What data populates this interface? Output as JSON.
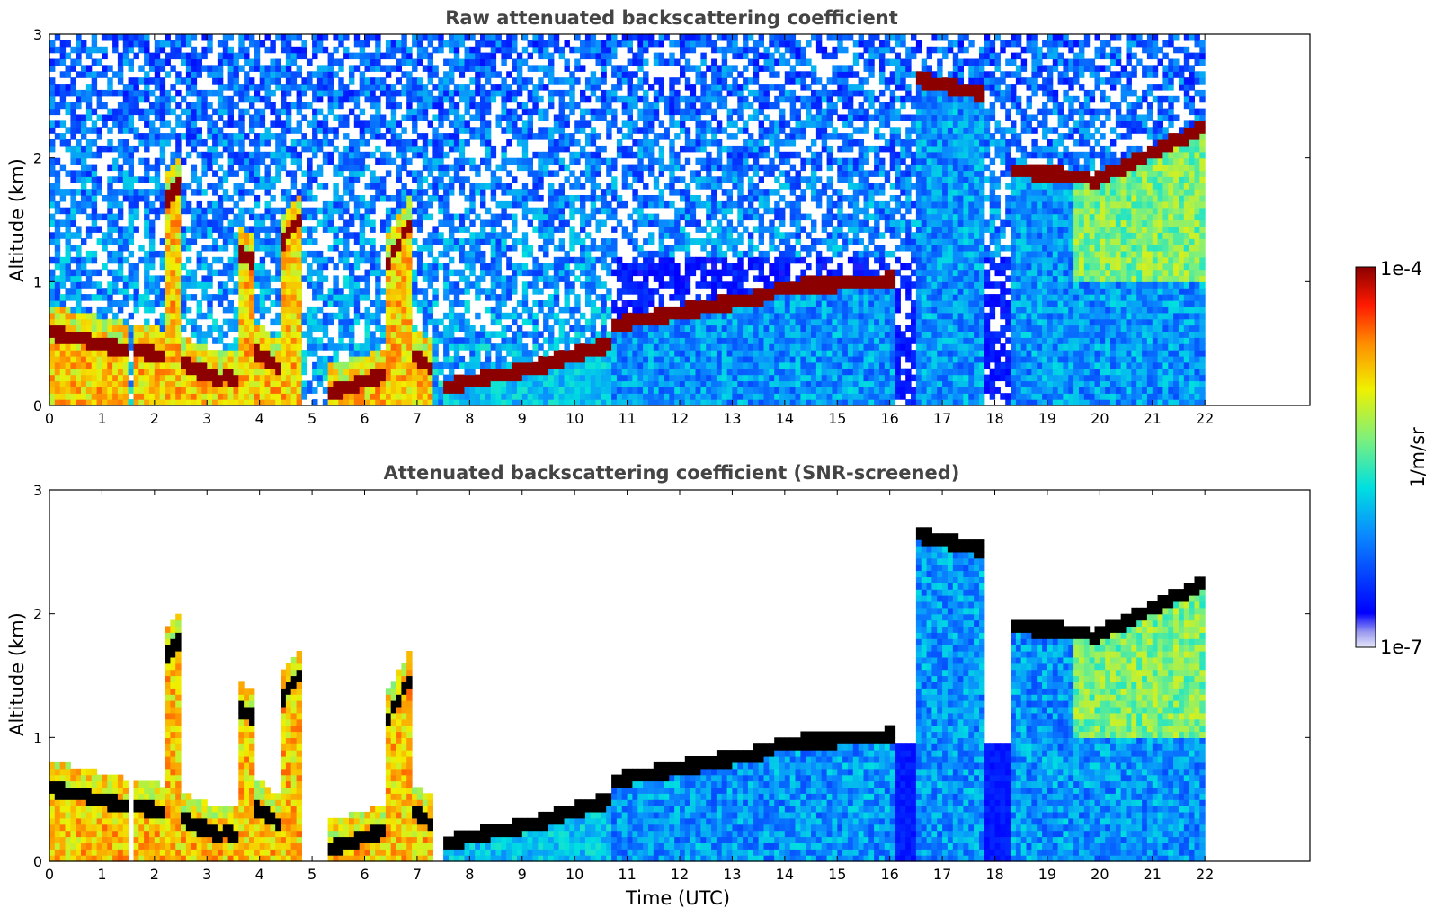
{
  "chart_data": [
    {
      "type": "heatmap",
      "title": "Raw attenuated backscattering coefficient",
      "xlabel": "",
      "ylabel": "Altitude (km)",
      "xlim": [
        0,
        24
      ],
      "ylim": [
        0,
        3
      ],
      "x_ticks": [
        "0",
        "1",
        "2",
        "3",
        "4",
        "5",
        "6",
        "7",
        "8",
        "9",
        "10",
        "11",
        "12",
        "13",
        "14",
        "15",
        "16",
        "17",
        "18",
        "19",
        "20",
        "21",
        "22"
      ],
      "y_ticks": [
        "0",
        "1",
        "2",
        "3"
      ],
      "data_time_range": [
        0,
        22
      ],
      "cloud_layers": [
        {
          "t": [
            0,
            1.5
          ],
          "alt_start": 0.6,
          "alt_end": 0.45
        },
        {
          "t": [
            1.6,
            2.2
          ],
          "alt_start": 0.45,
          "alt_end": 0.4
        },
        {
          "t": [
            2.2,
            2.5
          ],
          "alt_start": 1.65,
          "alt_end": 1.8
        },
        {
          "t": [
            2.5,
            3.3
          ],
          "alt_start": 0.35,
          "alt_end": 0.2
        },
        {
          "t": [
            3.3,
            3.6
          ],
          "alt_start": 0.25,
          "alt_end": 0.2
        },
        {
          "t": [
            3.6,
            3.9
          ],
          "alt_start": 1.25,
          "alt_end": 1.15
        },
        {
          "t": [
            3.9,
            4.4
          ],
          "alt_start": 0.45,
          "alt_end": 0.3
        },
        {
          "t": [
            4.4,
            4.75
          ],
          "alt_start": 1.3,
          "alt_end": 1.5
        },
        {
          "t": [
            5.3,
            6.4
          ],
          "alt_start": 0.1,
          "alt_end": 0.25
        },
        {
          "t": [
            6.3,
            6.9
          ],
          "alt_start": 1.05,
          "alt_end": 1.5
        },
        {
          "t": [
            6.8,
            7.3
          ],
          "alt_start": 0.45,
          "alt_end": 0.3
        },
        {
          "t": [
            7.5,
            9.5
          ],
          "alt_start": 0.15,
          "alt_end": 0.33
        },
        {
          "t": [
            9.5,
            10.7
          ],
          "alt_start": 0.35,
          "alt_end": 0.5
        },
        {
          "t": [
            10.7,
            13.8
          ],
          "alt_start": 0.65,
          "alt_end": 0.9
        },
        {
          "t": [
            13.8,
            16.1
          ],
          "alt_start": 0.95,
          "alt_end": 1.02
        },
        {
          "t": [
            16.5,
            17.8
          ],
          "alt_start": 2.65,
          "alt_end": 2.52
        },
        {
          "t": [
            18.3,
            19.8
          ],
          "alt_start": 1.9,
          "alt_end": 1.85
        },
        {
          "t": [
            19.8,
            22
          ],
          "alt_start": 1.8,
          "alt_end": 2.25
        }
      ],
      "colorbar": {
        "min_label": "1e-7",
        "max_label": "1e-4",
        "unit": "1/m/sr",
        "colormap": "jet",
        "scale": "log"
      }
    },
    {
      "type": "heatmap",
      "title": "Attenuated backscattering coefficient (SNR-screened)",
      "xlabel": "Time (UTC)",
      "ylabel": "Altitude (km)",
      "xlim": [
        0,
        24
      ],
      "ylim": [
        0,
        3
      ],
      "x_ticks": [
        "0",
        "1",
        "2",
        "3",
        "4",
        "5",
        "6",
        "7",
        "8",
        "9",
        "10",
        "11",
        "12",
        "13",
        "14",
        "15",
        "16",
        "17",
        "18",
        "19",
        "20",
        "21",
        "22"
      ],
      "y_ticks": [
        "0",
        "1",
        "2",
        "3"
      ],
      "data_time_range": [
        0,
        22
      ],
      "saturated_color": "#000000",
      "colorbar": {
        "min_label": "1e-7",
        "max_label": "1e-4",
        "unit": "1/m/sr",
        "colormap": "jet",
        "scale": "log"
      }
    }
  ]
}
